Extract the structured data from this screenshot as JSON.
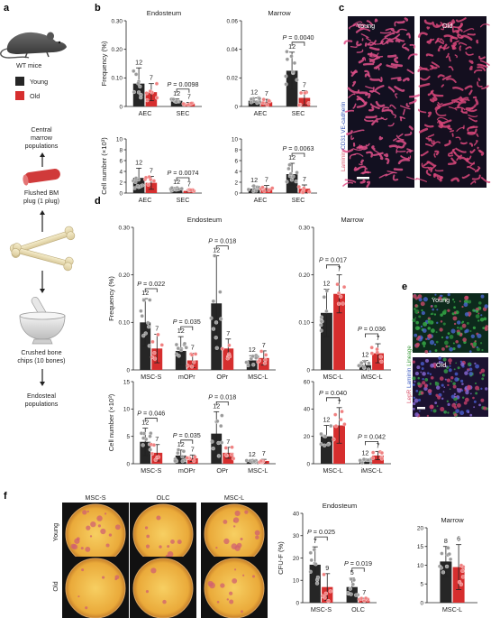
{
  "colors": {
    "young": "#262626",
    "old": "#d62e2e",
    "young_dot": "#9a9a9a",
    "old_dot": "#f08080",
    "line": "#222222"
  },
  "panel_labels": {
    "a": "a",
    "b": "b",
    "c": "c",
    "d": "d",
    "e": "e",
    "f": "f"
  },
  "panel_a": {
    "mouse_label": "WT mice",
    "legend_young": "Young",
    "legend_old": "Old",
    "central_1": "Central",
    "central_2": "marrow",
    "central_3": "populations",
    "flushed_1": "Flushed BM",
    "flushed_2": "plug (1 plug)",
    "crushed_1": "Crushed bone",
    "crushed_2": "chips (10 bones)",
    "endosteal_1": "Endosteal",
    "endosteal_2": "populations",
    "icons": [
      "mouse-icon",
      "bone-plug-icon",
      "bone-icon",
      "mortar-pestle-icon",
      "arrow-up-icon",
      "arrow-down-icon"
    ]
  },
  "panel_c": {
    "young": "Young",
    "old": "Old",
    "ylabel_1": "Laminin",
    "ylabel_2": "CD31",
    "ylabel_3": "VE-cadherin"
  },
  "panel_e": {
    "young": "Young",
    "old": "Old",
    "ylabel_1": "LepR",
    "ylabel_2": "Laminin",
    "ylabel_3": "Lineage"
  },
  "panel_f": {
    "col_1": "MSC-S",
    "col_2": "OLC",
    "col_3": "MSC-L",
    "row_1": "Young",
    "row_2": "Old"
  },
  "chart_data": [
    {
      "id": "b_freq_endo",
      "type": "bar",
      "title": "Endosteum",
      "ylabel": "Frequency (%)",
      "ylim": [
        0,
        0.3
      ],
      "yticks": [
        "0",
        "0.10",
        "0.20",
        "0.30"
      ],
      "categories": [
        "AEC",
        "SEC"
      ],
      "series": [
        {
          "name": "Young",
          "values": [
            0.08,
            0.02
          ],
          "err": [
            0.055,
            0.006
          ]
        },
        {
          "name": "Old",
          "values": [
            0.05,
            0.01
          ],
          "err": [
            0.03,
            0.004
          ]
        }
      ],
      "n": [
        [
          "12",
          "7"
        ],
        [
          "12",
          "7"
        ]
      ],
      "annotations": [
        {
          "text": "P = 0.0098",
          "group": 1
        }
      ]
    },
    {
      "id": "b_freq_marrow",
      "type": "bar",
      "title": "Marrow",
      "ylabel": "",
      "ylim": [
        0,
        0.06
      ],
      "yticks": [
        "0",
        "0.02",
        "0.04",
        "0.06"
      ],
      "categories": [
        "AEC",
        "SEC"
      ],
      "series": [
        {
          "name": "Young",
          "values": [
            0.004,
            0.025
          ],
          "err": [
            0.002,
            0.013
          ]
        },
        {
          "name": "Old",
          "values": [
            0.003,
            0.006
          ],
          "err": [
            0.002,
            0.005
          ]
        }
      ],
      "n": [
        [
          "12",
          "7"
        ],
        [
          "12",
          "7"
        ]
      ],
      "annotations": [
        {
          "text": "P = 0.0040",
          "group": 1
        }
      ]
    },
    {
      "id": "b_count_endo",
      "type": "bar",
      "title": "",
      "ylabel": "Cell number (×10³)",
      "ylim": [
        0,
        10
      ],
      "yticks": [
        "0",
        "2",
        "4",
        "6",
        "8",
        "10"
      ],
      "categories": [
        "AEC",
        "SEC"
      ],
      "series": [
        {
          "name": "Young",
          "values": [
            2.8,
            0.7
          ],
          "err": [
            1.8,
            0.3
          ]
        },
        {
          "name": "Old",
          "values": [
            1.9,
            0.4
          ],
          "err": [
            1.2,
            0.2
          ]
        }
      ],
      "n": [
        [
          "12",
          "7"
        ],
        [
          "12",
          "7"
        ]
      ],
      "annotations": [
        {
          "text": "P = 0.0074",
          "group": 1
        }
      ]
    },
    {
      "id": "b_count_marrow",
      "type": "bar",
      "title": "",
      "ylabel": "",
      "ylim": [
        0,
        10
      ],
      "yticks": [
        "0",
        "2",
        "4",
        "6",
        "8",
        "10"
      ],
      "categories": [
        "AEC",
        "SEC"
      ],
      "series": [
        {
          "name": "Young",
          "values": [
            0.8,
            3.5
          ],
          "err": [
            0.5,
            2.0
          ]
        },
        {
          "name": "Old",
          "values": [
            0.9,
            0.8
          ],
          "err": [
            0.5,
            0.7
          ]
        }
      ],
      "n": [
        [
          "12",
          "7"
        ],
        [
          "12",
          "7"
        ]
      ],
      "annotations": [
        {
          "text": "P = 0.0063",
          "group": 1
        }
      ]
    },
    {
      "id": "d_freq_endo",
      "type": "bar",
      "title": "Endosteum",
      "ylabel": "Frequency (%)",
      "ylim": [
        0,
        0.3
      ],
      "yticks": [
        "0",
        "0.10",
        "0.20",
        "0.30"
      ],
      "categories": [
        "MSC-S",
        "mOPr",
        "OPr",
        "MSC-L"
      ],
      "series": [
        {
          "name": "Young",
          "values": [
            0.1,
            0.04,
            0.14,
            0.02
          ],
          "err": [
            0.05,
            0.03,
            0.1,
            0.01
          ]
        },
        {
          "name": "Old",
          "values": [
            0.045,
            0.02,
            0.045,
            0.025
          ],
          "err": [
            0.03,
            0.015,
            0.02,
            0.015
          ]
        }
      ],
      "n": [
        [
          "12",
          "7"
        ],
        [
          "12",
          "7"
        ],
        [
          "12",
          "7"
        ],
        [
          "12",
          "7"
        ]
      ],
      "annotations": [
        {
          "text": "P = 0.022",
          "group": 0
        },
        {
          "text": "P = 0.035",
          "group": 1
        },
        {
          "text": "P = 0.018",
          "group": 2
        }
      ]
    },
    {
      "id": "d_freq_marrow",
      "type": "bar",
      "title": "Marrow",
      "ylabel": "",
      "ylim": [
        0,
        0.3
      ],
      "yticks": [
        "0",
        "0.10",
        "0.20",
        "0.30"
      ],
      "categories": [
        "MSC-L",
        "iMSC-L"
      ],
      "series": [
        {
          "name": "Young",
          "values": [
            0.12,
            0.01
          ],
          "err": [
            0.05,
            0.01
          ]
        },
        {
          "name": "Old",
          "values": [
            0.16,
            0.035
          ],
          "err": [
            0.04,
            0.02
          ]
        }
      ],
      "n": [
        [
          "12",
          "7"
        ],
        [
          "12",
          "7"
        ]
      ],
      "annotations": [
        {
          "text": "P = 0.017",
          "group": 0
        },
        {
          "text": "P = 0.036",
          "group": 1
        }
      ]
    },
    {
      "id": "d_count_endo",
      "type": "bar",
      "title": "",
      "ylabel": "Cell number (×10³)",
      "ylim": [
        0,
        15
      ],
      "yticks": [
        "0",
        "5",
        "10",
        "15"
      ],
      "categories": [
        "MSC-S",
        "mOPr",
        "OPr",
        "MSC-L"
      ],
      "series": [
        {
          "name": "Young",
          "values": [
            4.0,
            1.5,
            5.5,
            0.4
          ],
          "err": [
            2.5,
            1.0,
            4.0,
            0.3
          ]
        },
        {
          "name": "Old",
          "values": [
            2.0,
            1.0,
            2.0,
            0.5
          ],
          "err": [
            1.5,
            0.6,
            1.0,
            0.3
          ]
        }
      ],
      "n": [
        [
          "12",
          "7"
        ],
        [
          "12",
          "7"
        ],
        [
          "12",
          "7"
        ],
        [
          "12",
          "7"
        ]
      ],
      "annotations": [
        {
          "text": "P = 0.046",
          "group": 0
        },
        {
          "text": "P = 0.035",
          "group": 1
        },
        {
          "text": "P = 0.018",
          "group": 2
        }
      ]
    },
    {
      "id": "d_count_marrow",
      "type": "bar",
      "title": "",
      "ylabel": "",
      "ylim": [
        0,
        60
      ],
      "yticks": [
        "0",
        "20",
        "40",
        "60"
      ],
      "categories": [
        "MSC-L",
        "iMSC-L"
      ],
      "series": [
        {
          "name": "Young",
          "values": [
            20,
            2
          ],
          "err": [
            8,
            1.5
          ]
        },
        {
          "name": "Old",
          "values": [
            28,
            6
          ],
          "err": [
            13,
            3
          ]
        }
      ],
      "n": [
        [
          "12",
          "7"
        ],
        [
          "12",
          "7"
        ]
      ],
      "annotations": [
        {
          "text": "P = 0.040",
          "group": 0
        },
        {
          "text": "P = 0.042",
          "group": 1
        }
      ]
    },
    {
      "id": "f_cfu_endo",
      "type": "bar",
      "title": "Endosteum",
      "ylabel": "CFU-F (%)",
      "ylim": [
        0,
        40
      ],
      "yticks": [
        "0",
        "10",
        "20",
        "30",
        "40"
      ],
      "categories": [
        "MSC-S",
        "OLC"
      ],
      "series": [
        {
          "name": "Young",
          "values": [
            17,
            7
          ],
          "err": [
            8,
            4
          ]
        },
        {
          "name": "Old",
          "values": [
            7,
            1
          ],
          "err": [
            6,
            1
          ]
        }
      ],
      "n": [
        [
          "7",
          "9"
        ],
        [
          "5",
          "7"
        ]
      ],
      "annotations": [
        {
          "text": "P = 0.025",
          "group": 0
        },
        {
          "text": "P = 0.019",
          "group": 1
        }
      ]
    },
    {
      "id": "f_cfu_marrow",
      "type": "bar",
      "title": "Marrow",
      "ylabel": "",
      "ylim": [
        0,
        20
      ],
      "yticks": [
        "0",
        "5",
        "10",
        "15",
        "20"
      ],
      "categories": [
        "MSC-L"
      ],
      "series": [
        {
          "name": "Young",
          "values": [
            11
          ],
          "err": [
            4
          ]
        },
        {
          "name": "Old",
          "values": [
            9.5
          ],
          "err": [
            6
          ]
        }
      ],
      "n": [
        [
          "8",
          "6"
        ]
      ],
      "annotations": []
    }
  ]
}
